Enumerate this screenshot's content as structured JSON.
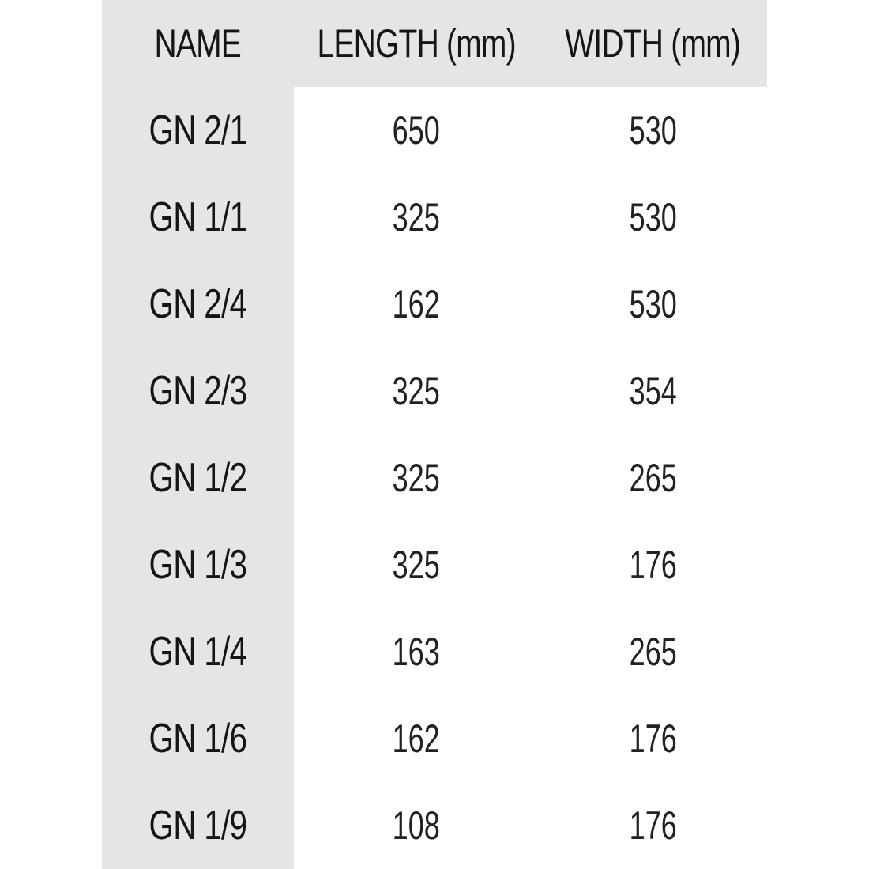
{
  "table": {
    "headers": [
      "NAME",
      "LENGTH (mm)",
      "WIDTH (mm)"
    ],
    "rows": [
      [
        "GN 2/1",
        "650",
        "530"
      ],
      [
        "GN 1/1",
        "325",
        "530"
      ],
      [
        "GN 2/4",
        "162",
        "530"
      ],
      [
        "GN 2/3",
        "325",
        "354"
      ],
      [
        "GN 1/2",
        "325",
        "265"
      ],
      [
        "GN 1/3",
        "325",
        "176"
      ],
      [
        "GN 1/4",
        "163",
        "265"
      ],
      [
        "GN 1/6",
        "162",
        "176"
      ],
      [
        "GN 1/9",
        "108",
        "176"
      ]
    ]
  },
  "colors": {
    "band": "#e6e5e5",
    "text": "#151515"
  }
}
